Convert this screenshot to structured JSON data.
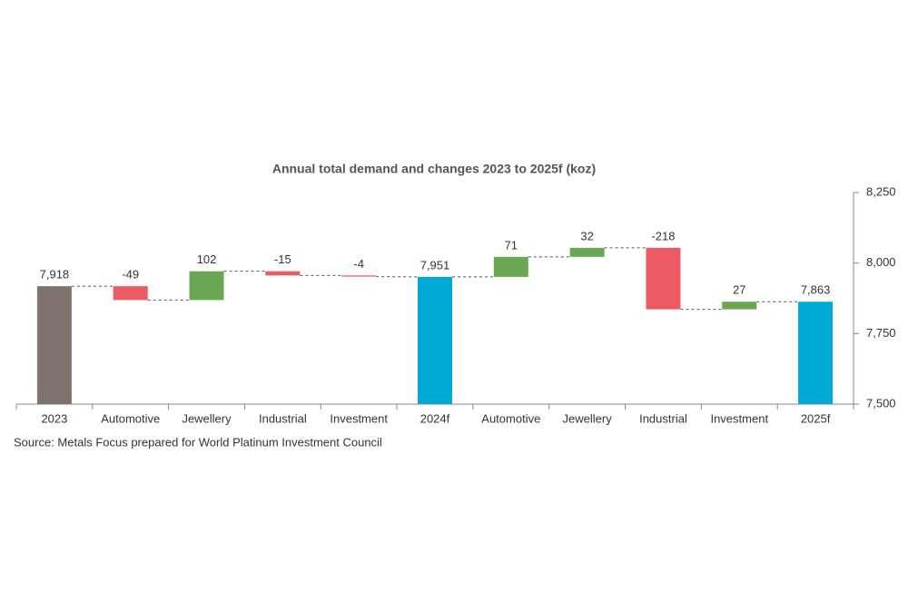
{
  "chart_data": {
    "type": "waterfall",
    "title": "Annual total demand and changes 2023 to 2025f (koz)",
    "source": "Source: Metals Focus prepared for World Platinum Investment Council",
    "categories": [
      "2023",
      "Automotive",
      "Jewellery",
      "Industrial",
      "Investment",
      "2024f",
      "Automotive",
      "Jewellery",
      "Industrial",
      "Investment",
      "2025f"
    ],
    "measure": [
      "total",
      "relative",
      "relative",
      "relative",
      "relative",
      "total",
      "relative",
      "relative",
      "relative",
      "relative",
      "total"
    ],
    "values": [
      7918,
      -49,
      102,
      -15,
      -4,
      7951,
      71,
      32,
      -218,
      27,
      7863
    ],
    "value_labels": [
      "7,918",
      "-49",
      "102",
      "-15",
      "-4",
      "7,951",
      "71",
      "32",
      "-218",
      "27",
      "7,863"
    ],
    "colors": [
      "#7e736c",
      "#ec5a63",
      "#6aa753",
      "#ec5a63",
      "#ec5a63",
      "#00a8d6",
      "#6aa753",
      "#6aa753",
      "#ec5a63",
      "#6aa753",
      "#00a8d6"
    ],
    "ylim": [
      7500,
      8250
    ],
    "yticks": [
      {
        "value": 7500,
        "label": "7,500"
      },
      {
        "value": 7750,
        "label": "7,750"
      },
      {
        "value": 8000,
        "label": "8,000"
      },
      {
        "value": 8250,
        "label": "8,250"
      }
    ],
    "y_axis_side": "right"
  }
}
